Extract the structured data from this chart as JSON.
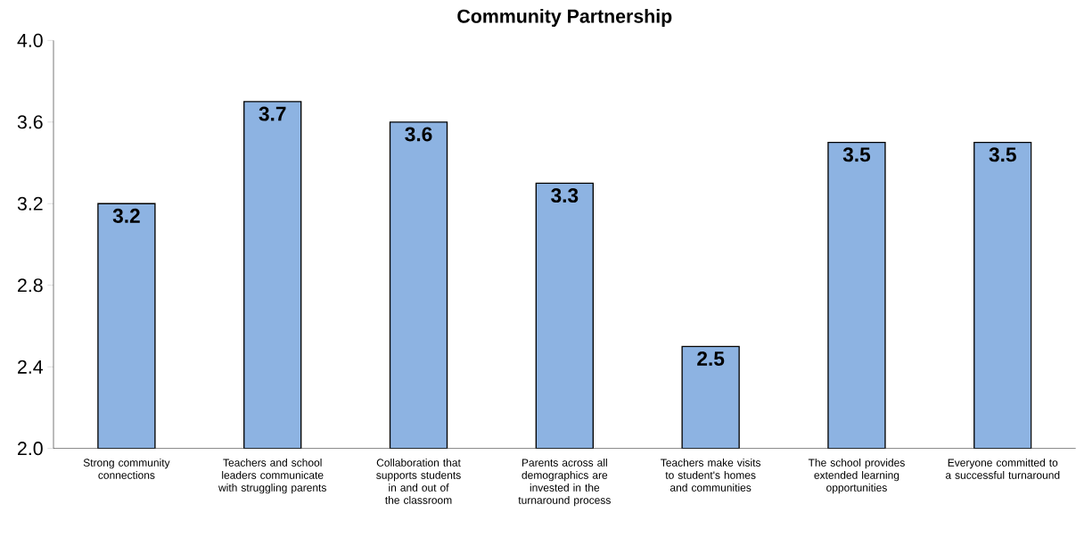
{
  "chart_data": {
    "type": "bar",
    "title": "Community Partnership",
    "categories": [
      "Strong community connections",
      "Teachers and school leaders communicate with struggling parents",
      "Collaboration that supports students in and out of the classroom",
      "Parents across all demographics are invested in the turnaround process",
      "Teachers make visits to student's homes and communities",
      "The school provides extended learning opportunities",
      "Everyone committed to a successful turnaround"
    ],
    "values": [
      3.2,
      3.7,
      3.6,
      3.3,
      2.5,
      3.5,
      3.5
    ],
    "color": "#8db3e2",
    "value_labels": [
      "3.2",
      "3.7",
      "3.6",
      "3.3",
      "2.5",
      "3.5",
      "3.5"
    ],
    "ylim": [
      2.0,
      4.0
    ],
    "yticks": [
      {
        "value": 2,
        "label": "2.0"
      },
      {
        "value": 2.4,
        "label": "2.4"
      },
      {
        "value": 2.8,
        "label": "2.8"
      },
      {
        "value": 3.2,
        "label": "3.2"
      },
      {
        "value": 3.6,
        "label": "3.6"
      },
      {
        "value": 4,
        "label": "4.0"
      }
    ],
    "grid": false
  }
}
